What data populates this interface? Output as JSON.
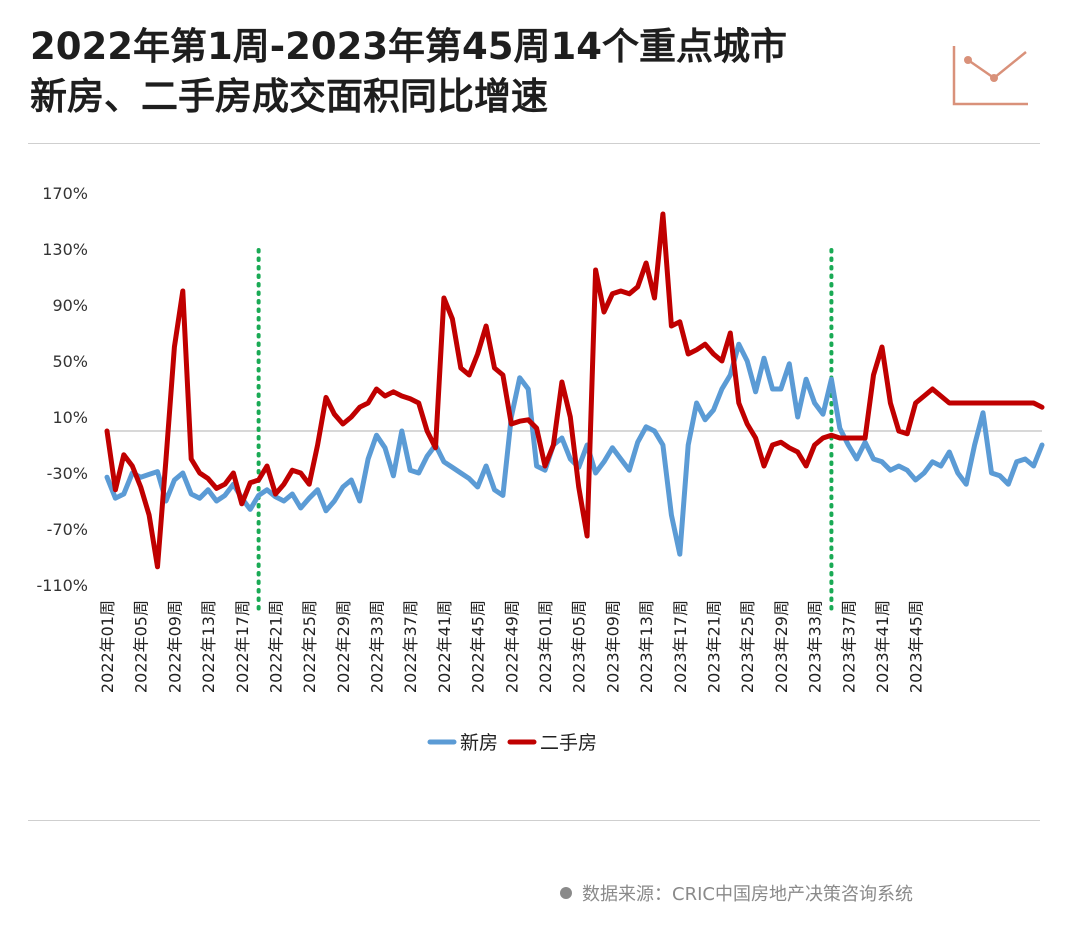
{
  "title_line1": "2022年第1周-2023年第45周14个重点城市",
  "title_line2": "新房、二手房成交面积同比增速",
  "source": "数据来源：CRIC中国房地产决策咨询系统",
  "colors": {
    "new": "#5b9bd5",
    "second": "#c00000",
    "marker": "#1aaa55",
    "zero": "#cccccc",
    "logo": "#d9917a"
  },
  "chart_data": {
    "type": "line",
    "title": "2022年第1周-2023年第45周14个重点城市 新房、二手房成交面积同比增速",
    "xlabel": "",
    "ylabel": "",
    "ylim": [
      -110,
      170
    ],
    "yticks": [
      -110,
      -70,
      -30,
      10,
      50,
      90,
      130,
      170
    ],
    "ytick_labels": [
      "-110%",
      "-70%",
      "-30%",
      "10%",
      "50%",
      "90%",
      "130%",
      "170%"
    ],
    "x_tick_labels": [
      "2022年01周",
      "2022年05周",
      "2022年09周",
      "2022年13周",
      "2022年17周",
      "2022年21周",
      "2022年25周",
      "2022年29周",
      "2022年33周",
      "2022年37周",
      "2022年41周",
      "2022年45周",
      "2022年49周",
      "2023年01周",
      "2023年05周",
      "2023年09周",
      "2023年13周",
      "2023年17周",
      "2023年21周",
      "2023年25周",
      "2023年29周",
      "2023年33周",
      "2023年37周",
      "2023年41周",
      "2023年45周"
    ],
    "legend_position": "bottom",
    "grid": false,
    "marker_lines": [
      "2022年19周",
      "2023年35周"
    ],
    "series": [
      {
        "name": "新房",
        "points": [
          [
            1,
            -33
          ],
          [
            2,
            -48
          ],
          [
            3,
            -45
          ],
          [
            4,
            -30
          ],
          [
            5,
            -33
          ],
          [
            6,
            -31
          ],
          [
            7,
            -29
          ],
          [
            8,
            -50
          ],
          [
            9,
            -35
          ],
          [
            10,
            -30
          ],
          [
            11,
            -45
          ],
          [
            12,
            -48
          ],
          [
            13,
            -42
          ],
          [
            14,
            -50
          ],
          [
            15,
            -46
          ],
          [
            16,
            -38
          ],
          [
            17,
            -48
          ],
          [
            18,
            -56
          ],
          [
            19,
            -46
          ],
          [
            20,
            -42
          ],
          [
            21,
            -47
          ],
          [
            22,
            -50
          ],
          [
            23,
            -45
          ],
          [
            24,
            -55
          ],
          [
            25,
            -48
          ],
          [
            26,
            -42
          ],
          [
            27,
            -57
          ],
          [
            28,
            -50
          ],
          [
            29,
            -40
          ],
          [
            30,
            -35
          ],
          [
            31,
            -50
          ],
          [
            32,
            -20
          ],
          [
            33,
            -3
          ],
          [
            34,
            -12
          ],
          [
            35,
            -32
          ],
          [
            36,
            0
          ],
          [
            37,
            -28
          ],
          [
            38,
            -30
          ],
          [
            39,
            -18
          ],
          [
            40,
            -10
          ],
          [
            41,
            -22
          ],
          [
            42,
            -26
          ],
          [
            43,
            -30
          ],
          [
            44,
            -34
          ],
          [
            45,
            -40
          ],
          [
            46,
            -25
          ],
          [
            47,
            -42
          ],
          [
            48,
            -46
          ],
          [
            49,
            10
          ],
          [
            50,
            38
          ],
          [
            51,
            30
          ],
          [
            52,
            -25
          ],
          [
            53,
            -28
          ],
          [
            54,
            -10
          ],
          [
            55,
            -5
          ],
          [
            56,
            -20
          ],
          [
            57,
            -26
          ],
          [
            58,
            -10
          ],
          [
            59,
            -30
          ],
          [
            60,
            -22
          ],
          [
            61,
            -12
          ],
          [
            62,
            -20
          ],
          [
            63,
            -28
          ],
          [
            64,
            -8
          ],
          [
            65,
            3
          ],
          [
            66,
            0
          ],
          [
            67,
            -10
          ],
          [
            68,
            -60
          ],
          [
            69,
            -88
          ],
          [
            70,
            -10
          ],
          [
            71,
            20
          ],
          [
            72,
            8
          ],
          [
            73,
            15
          ],
          [
            74,
            30
          ],
          [
            75,
            40
          ],
          [
            76,
            62
          ],
          [
            77,
            50
          ],
          [
            78,
            28
          ],
          [
            79,
            52
          ],
          [
            80,
            30
          ],
          [
            81,
            30
          ],
          [
            82,
            48
          ],
          [
            83,
            10
          ],
          [
            84,
            37
          ],
          [
            85,
            20
          ],
          [
            86,
            12
          ],
          [
            87,
            37
          ],
          [
            88,
            2
          ],
          [
            89,
            -10
          ],
          [
            90,
            -20
          ],
          [
            91,
            -8
          ],
          [
            92,
            -20
          ],
          [
            93,
            -22
          ],
          [
            94,
            -28
          ],
          [
            95,
            -25
          ],
          [
            96,
            -28
          ],
          [
            97,
            -35
          ],
          [
            98,
            -30
          ],
          [
            99,
            -22
          ],
          [
            100,
            -25
          ],
          [
            101,
            -15
          ],
          [
            102,
            -30
          ],
          [
            103,
            -38
          ],
          [
            104,
            -10
          ],
          [
            105,
            13
          ],
          [
            106,
            -30
          ],
          [
            107,
            -32
          ],
          [
            108,
            -38
          ],
          [
            109,
            -22
          ],
          [
            110,
            -20
          ],
          [
            111,
            -25
          ],
          [
            112,
            -10
          ]
        ]
      },
      {
        "name": "二手房",
        "points": [
          [
            1,
            0
          ],
          [
            2,
            -42
          ],
          [
            3,
            -17
          ],
          [
            4,
            -25
          ],
          [
            5,
            -40
          ],
          [
            6,
            -60
          ],
          [
            7,
            -97
          ],
          [
            8,
            -20
          ],
          [
            9,
            60
          ],
          [
            10,
            100
          ],
          [
            11,
            -20
          ],
          [
            12,
            -30
          ],
          [
            13,
            -34
          ],
          [
            14,
            -41
          ],
          [
            15,
            -38
          ],
          [
            16,
            -30
          ],
          [
            17,
            -52
          ],
          [
            18,
            -37
          ],
          [
            19,
            -35
          ],
          [
            20,
            -25
          ],
          [
            21,
            -45
          ],
          [
            22,
            -38
          ],
          [
            23,
            -28
          ],
          [
            24,
            -30
          ],
          [
            25,
            -38
          ],
          [
            26,
            -10
          ],
          [
            27,
            24
          ],
          [
            28,
            12
          ],
          [
            29,
            5
          ],
          [
            30,
            10
          ],
          [
            31,
            17
          ],
          [
            32,
            20
          ],
          [
            33,
            30
          ],
          [
            34,
            25
          ],
          [
            35,
            28
          ],
          [
            36,
            25
          ],
          [
            37,
            23
          ],
          [
            38,
            20
          ],
          [
            39,
            0
          ],
          [
            40,
            -12
          ],
          [
            41,
            95
          ],
          [
            42,
            80
          ],
          [
            43,
            45
          ],
          [
            44,
            40
          ],
          [
            45,
            55
          ],
          [
            46,
            75
          ],
          [
            47,
            45
          ],
          [
            48,
            40
          ],
          [
            49,
            5
          ],
          [
            50,
            7
          ],
          [
            51,
            8
          ],
          [
            52,
            2
          ],
          [
            53,
            -25
          ],
          [
            54,
            -10
          ],
          [
            55,
            35
          ],
          [
            56,
            10
          ],
          [
            57,
            -40
          ],
          [
            58,
            -75
          ],
          [
            59,
            115
          ],
          [
            60,
            85
          ],
          [
            61,
            98
          ],
          [
            62,
            100
          ],
          [
            63,
            98
          ],
          [
            64,
            103
          ],
          [
            65,
            120
          ],
          [
            66,
            95
          ],
          [
            67,
            155
          ],
          [
            68,
            75
          ],
          [
            69,
            78
          ],
          [
            70,
            55
          ],
          [
            71,
            58
          ],
          [
            72,
            62
          ],
          [
            73,
            55
          ],
          [
            74,
            50
          ],
          [
            75,
            70
          ],
          [
            76,
            20
          ],
          [
            77,
            5
          ],
          [
            78,
            -5
          ],
          [
            79,
            -25
          ],
          [
            80,
            -10
          ],
          [
            81,
            -8
          ],
          [
            82,
            -12
          ],
          [
            83,
            -15
          ],
          [
            84,
            -25
          ],
          [
            85,
            -10
          ],
          [
            86,
            -5
          ],
          [
            87,
            -3
          ],
          [
            88,
            -5
          ],
          [
            89,
            -5
          ],
          [
            90,
            -5
          ],
          [
            91,
            -5
          ],
          [
            92,
            40
          ],
          [
            93,
            60
          ],
          [
            94,
            20
          ],
          [
            95,
            0
          ],
          [
            96,
            -2
          ],
          [
            97,
            20
          ],
          [
            98,
            25
          ],
          [
            99,
            30
          ],
          [
            100,
            25
          ],
          [
            101,
            20
          ],
          [
            102,
            20
          ],
          [
            103,
            20
          ],
          [
            104,
            20
          ],
          [
            105,
            20
          ],
          [
            106,
            20
          ],
          [
            107,
            20
          ],
          [
            108,
            20
          ],
          [
            109,
            20
          ],
          [
            110,
            20
          ],
          [
            111,
            20
          ],
          [
            112,
            17
          ]
        ]
      }
    ]
  }
}
